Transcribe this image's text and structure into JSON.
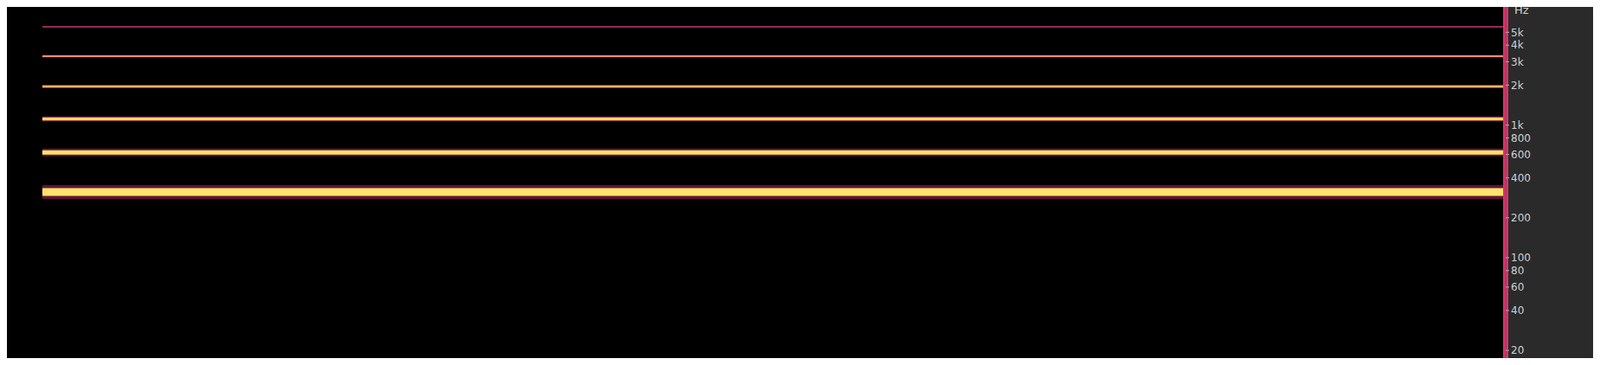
{
  "chart_data": {
    "type": "spectrogram",
    "y_label": "Hz",
    "log": "y",
    "tick_labels": "y",
    "grid": false,
    "xlim": [
      0,
      100
    ],
    "x": [
      2.7,
      100
    ],
    "ylim": [
      16,
      8500
    ],
    "yticks": [
      20,
      40,
      60,
      80,
      100,
      200,
      400,
      600,
      800,
      {
        "value": 1000,
        "label": "1k"
      },
      {
        "value": 2000,
        "label": "2k"
      },
      {
        "value": 3000,
        "label": "3k"
      },
      {
        "value": 4000,
        "label": "4k"
      },
      {
        "value": 5000,
        "label": "5k"
      }
    ],
    "series": [
      {
        "color": "#ffe36a",
        "values": [
          313,
          313
        ]
      },
      {
        "color": "#ffe06a",
        "values": [
          622,
          622
        ]
      },
      {
        "color": "#ffd36a",
        "values": [
          1111,
          1111
        ]
      },
      {
        "color": "#ffb060",
        "values": [
          1950,
          1950
        ]
      },
      {
        "color": "#ff8c6a",
        "values": [
          3300,
          3300
        ]
      },
      {
        "color": "#c8407a",
        "values": [
          5500,
          5500
        ]
      }
    ]
  }
}
